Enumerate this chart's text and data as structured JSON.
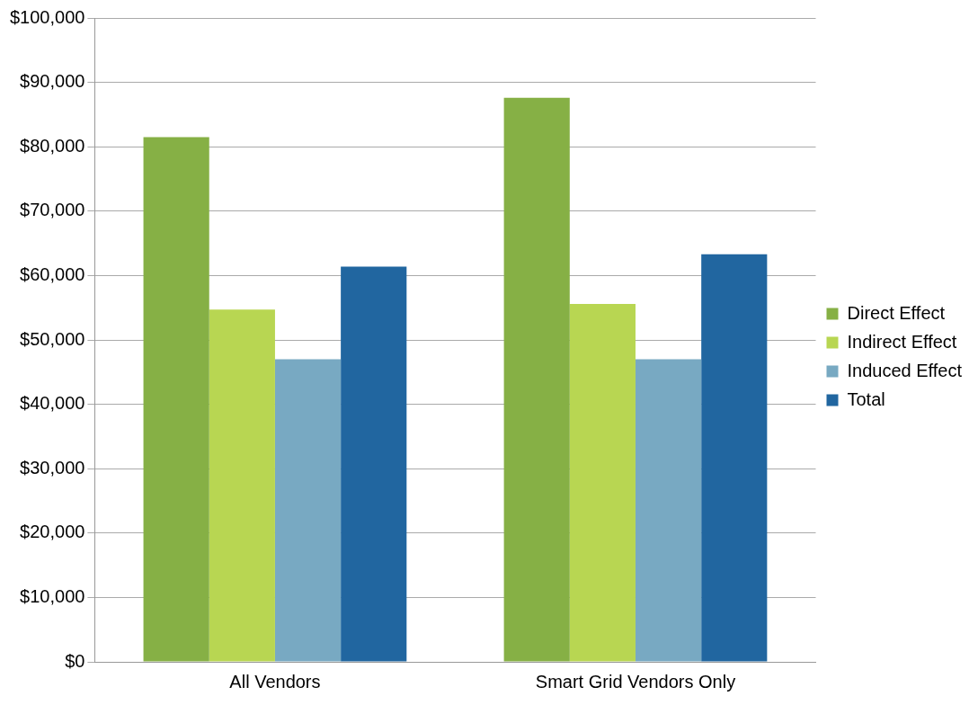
{
  "chart_data": {
    "type": "bar",
    "categories": [
      "All Vendors",
      "Smart Grid Vendors Only"
    ],
    "series": [
      {
        "name": "Direct Effect",
        "color": "#86b045",
        "values": [
          81500,
          87600
        ]
      },
      {
        "name": "Indirect Effect",
        "color": "#b8d652",
        "values": [
          54700,
          55600
        ]
      },
      {
        "name": "Induced Effect",
        "color": "#78a9c2",
        "values": [
          47000,
          47000
        ]
      },
      {
        "name": "Total",
        "color": "#2166a0",
        "values": [
          61400,
          63300
        ]
      }
    ],
    "ylim": [
      0,
      100000
    ],
    "yticks": [
      {
        "value": 0,
        "label": "$0"
      },
      {
        "value": 10000,
        "label": "$10,000"
      },
      {
        "value": 20000,
        "label": "$20,000"
      },
      {
        "value": 30000,
        "label": "$30,000"
      },
      {
        "value": 40000,
        "label": "$40,000"
      },
      {
        "value": 50000,
        "label": "$50,000"
      },
      {
        "value": 60000,
        "label": "$60,000"
      },
      {
        "value": 70000,
        "label": "$70,000"
      },
      {
        "value": 80000,
        "label": "$80,000"
      },
      {
        "value": 90000,
        "label": "$90,000"
      },
      {
        "value": 100000,
        "label": "$100,000"
      }
    ],
    "grid": "y",
    "legend": "right"
  }
}
